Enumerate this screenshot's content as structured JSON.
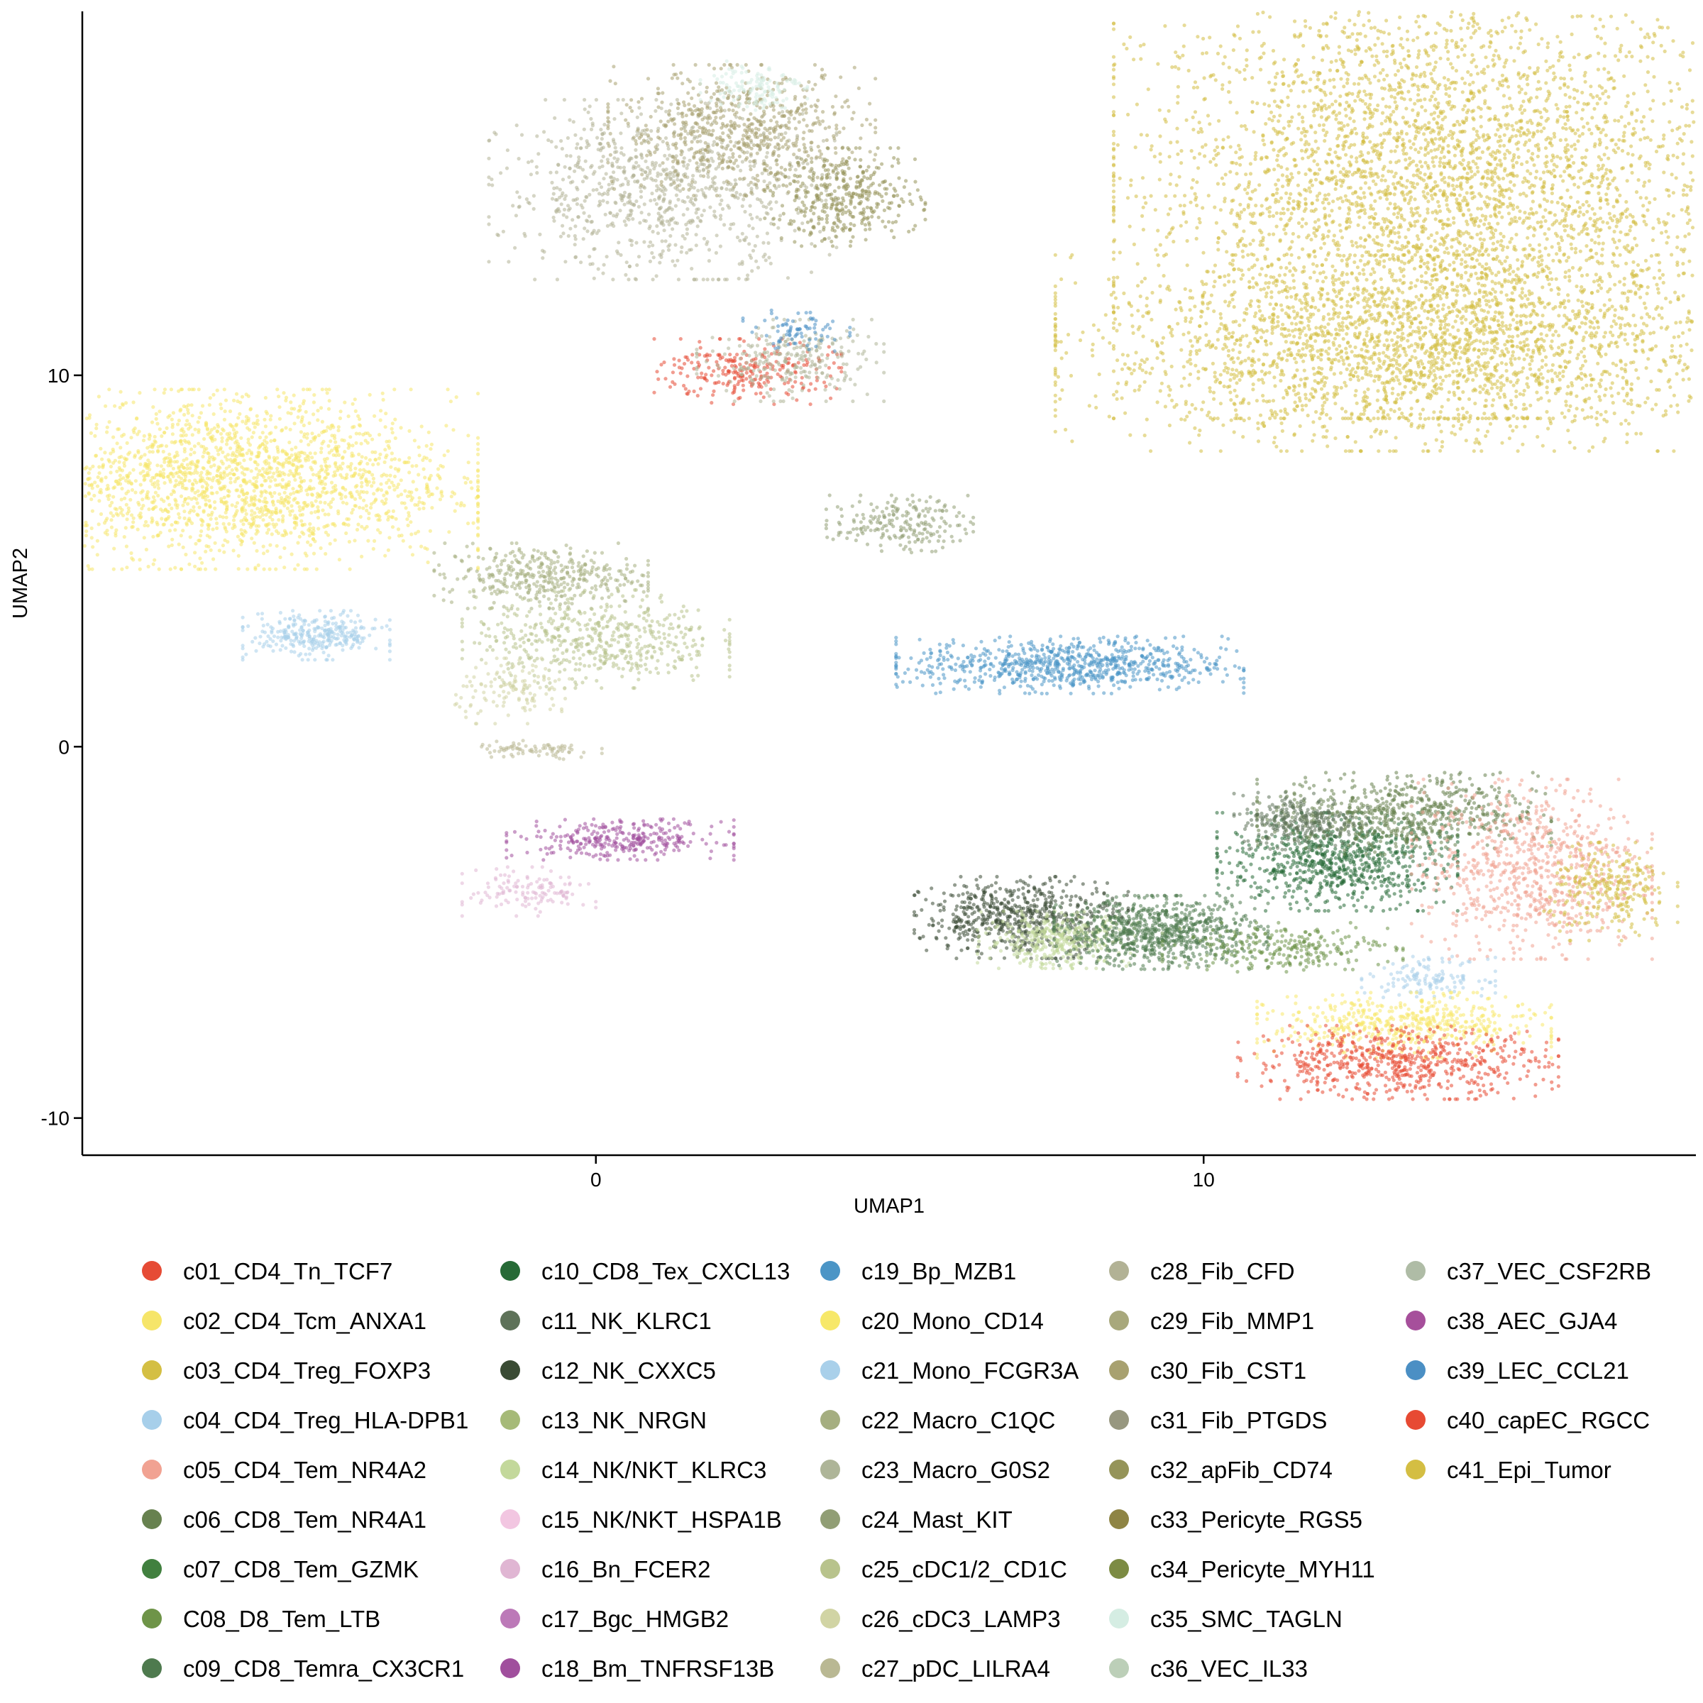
{
  "chart_data": {
    "type": "scatter",
    "title": "",
    "xlabel": "UMAP1",
    "ylabel": "UMAP2",
    "xlim": [
      -8.45,
      18.1
    ],
    "ylim": [
      -11.0,
      19.8
    ],
    "x_ticks": [
      0,
      10
    ],
    "y_ticks": [
      -10,
      0,
      10
    ],
    "x_tick_labels": [
      "0",
      "10"
    ],
    "y_tick_labels": [
      "-10",
      "0",
      "10"
    ],
    "grid": false,
    "legend_position": "bottom",
    "legend_columns": 5,
    "legend_rows": 9,
    "clusters": [
      {
        "name": "c01_CD4_Tn_TCF7",
        "color": "#E64B35"
      },
      {
        "name": "c02_CD4_Tcm_ANXA1",
        "color": "#F6E569"
      },
      {
        "name": "c03_CD4_Treg_FOXP3",
        "color": "#D4BF43"
      },
      {
        "name": "c04_CD4_Treg_HLA-DPB1",
        "color": "#A7CFEA"
      },
      {
        "name": "c05_CD4_Tem_NR4A2",
        "color": "#F1A292"
      },
      {
        "name": "c06_CD8_Tem_NR4A1",
        "color": "#67814F"
      },
      {
        "name": "c07_CD8_Tem_GZMK",
        "color": "#41803F"
      },
      {
        "name": "C08_D8_Tem_LTB",
        "color": "#6E9448"
      },
      {
        "name": "c09_CD8_Temra_CX3CR1",
        "color": "#4E7A4E"
      },
      {
        "name": "c10_CD8_Tex_CXCL13",
        "color": "#266A36"
      },
      {
        "name": "c11_NK_KLRC1",
        "color": "#5E7259"
      },
      {
        "name": "c12_NK_CXXC5",
        "color": "#3A4B34"
      },
      {
        "name": "c13_NK_NRGN",
        "color": "#A6BA78"
      },
      {
        "name": "c14_NK/NKT_KLRC3",
        "color": "#C3D89B"
      },
      {
        "name": "c15_NK/NKT_HSPA1B",
        "color": "#F2C6E1"
      },
      {
        "name": "c16_Bn_FCER2",
        "color": "#E0B6D3"
      },
      {
        "name": "c17_Bgc_HMGB2",
        "color": "#BC79B8"
      },
      {
        "name": "c18_Bm_TNFRSF13B",
        "color": "#A04F9D"
      },
      {
        "name": "c19_Bp_MZB1",
        "color": "#4B95C6"
      },
      {
        "name": "c20_Mono_CD14",
        "color": "#F7E869"
      },
      {
        "name": "c21_Mono_FCGR3A",
        "color": "#A9D0EA"
      },
      {
        "name": "c22_Macro_C1QC",
        "color": "#A5AE80"
      },
      {
        "name": "c23_Macro_G0S2",
        "color": "#AEB598"
      },
      {
        "name": "c24_Mast_KIT",
        "color": "#919E75"
      },
      {
        "name": "c25_cDC1/2_CD1C",
        "color": "#B8C38C"
      },
      {
        "name": "c26_cDC3_LAMP3",
        "color": "#D1D4A4"
      },
      {
        "name": "c27_pDC_LILRA4",
        "color": "#B9B893"
      },
      {
        "name": "c28_Fib_CFD",
        "color": "#B2B295"
      },
      {
        "name": "c29_Fib_MMP1",
        "color": "#A8A87C"
      },
      {
        "name": "c30_Fib_CST1",
        "color": "#A8A170"
      },
      {
        "name": "c31_Fib_PTGDS",
        "color": "#97977F"
      },
      {
        "name": "c32_apFib_CD74",
        "color": "#959459"
      },
      {
        "name": "c33_Pericyte_RGS5",
        "color": "#8E8444"
      },
      {
        "name": "c34_Pericyte_MYH11",
        "color": "#7C8B43"
      },
      {
        "name": "c35_SMC_TAGLN",
        "color": "#D5EDE3"
      },
      {
        "name": "c36_VEC_IL33",
        "color": "#BCCFB8"
      },
      {
        "name": "c37_VEC_CSF2RB",
        "color": "#AFBCA6"
      },
      {
        "name": "c38_AEC_GJA4",
        "color": "#A64F9B"
      },
      {
        "name": "c39_LEC_CCL21",
        "color": "#4B8FC4"
      },
      {
        "name": "c40_capEC_RGCC",
        "color": "#E74A33"
      },
      {
        "name": "c41_Epi_Tumor",
        "color": "#D4BE43"
      }
    ],
    "groups": [
      {
        "name": "c41_Epi_Tumor",
        "center": [
          13.8,
          15.0
        ],
        "spread": [
          2.4,
          2.8
        ],
        "weight": 0.16
      },
      {
        "name": "c03_CD4_Treg_FOXP3",
        "center": [
          13.5,
          10.6
        ],
        "spread": [
          2.7,
          1.2
        ],
        "weight": 0.08
      },
      {
        "name": "c02_CD4_Tcm_ANXA1",
        "center": [
          -5.9,
          7.2
        ],
        "spread": [
          1.8,
          1.1
        ],
        "weight": 0.08
      },
      {
        "name": "c04_CD4_Treg_HLA-DPB1",
        "center": [
          -4.6,
          3.0
        ],
        "spread": [
          0.55,
          0.3
        ],
        "weight": 0.012
      },
      {
        "name": "c28_Fib_CFD",
        "center": [
          1.1,
          15.0
        ],
        "spread": [
          1.3,
          1.1
        ],
        "weight": 0.035
      },
      {
        "name": "c30_Fib_CST1",
        "center": [
          2.4,
          16.6
        ],
        "spread": [
          1.0,
          0.8
        ],
        "weight": 0.025
      },
      {
        "name": "c32_apFib_CD74",
        "center": [
          4.1,
          14.8
        ],
        "spread": [
          0.6,
          0.6
        ],
        "weight": 0.015
      },
      {
        "name": "c35_SMC_TAGLN",
        "center": [
          2.6,
          17.8
        ],
        "spread": [
          0.4,
          0.3
        ],
        "weight": 0.005
      },
      {
        "name": "c01_CD4_Tn_TCF7",
        "center": [
          2.5,
          10.1
        ],
        "spread": [
          0.7,
          0.4
        ],
        "weight": 0.01
      },
      {
        "name": "c23_Macro_G0S2",
        "center": [
          3.2,
          10.4
        ],
        "spread": [
          0.7,
          0.5
        ],
        "weight": 0.01
      },
      {
        "name": "c39_LEC_CCL21",
        "center": [
          3.3,
          11.2
        ],
        "spread": [
          0.4,
          0.25
        ],
        "weight": 0.003
      },
      {
        "name": "c24_Mast_KIT",
        "center": [
          5.0,
          6.0
        ],
        "spread": [
          0.55,
          0.35
        ],
        "weight": 0.008
      },
      {
        "name": "c19_Bp_MZB1",
        "center": [
          7.8,
          2.2
        ],
        "spread": [
          1.3,
          0.35
        ],
        "weight": 0.03
      },
      {
        "name": "c22_Macro_C1QC",
        "center": [
          -0.9,
          4.6
        ],
        "spread": [
          0.8,
          0.4
        ],
        "weight": 0.015
      },
      {
        "name": "c25_cDC1/2_CD1C",
        "center": [
          0.0,
          2.9
        ],
        "spread": [
          1.0,
          0.6
        ],
        "weight": 0.02
      },
      {
        "name": "c26_cDC3_LAMP3",
        "center": [
          -1.3,
          1.5
        ],
        "spread": [
          0.5,
          0.4
        ],
        "weight": 0.005
      },
      {
        "name": "c27_pDC_LILRA4",
        "center": [
          -1.0,
          -0.1
        ],
        "spread": [
          0.5,
          0.12
        ],
        "weight": 0.003
      },
      {
        "name": "c18_Bm_TNFRSF13B",
        "center": [
          0.4,
          -2.5
        ],
        "spread": [
          0.85,
          0.25
        ],
        "weight": 0.012
      },
      {
        "name": "c16_Bn_FCER2",
        "center": [
          -1.1,
          -3.9
        ],
        "spread": [
          0.5,
          0.3
        ],
        "weight": 0.005
      },
      {
        "name": "c12_NK_CXXC5",
        "center": [
          7.0,
          -4.6
        ],
        "spread": [
          0.8,
          0.5
        ],
        "weight": 0.025
      },
      {
        "name": "c14_NK/NKT_KLRC3",
        "center": [
          7.6,
          -5.2
        ],
        "spread": [
          0.6,
          0.35
        ],
        "weight": 0.015
      },
      {
        "name": "c09_CD8_Temra_CX3CR1",
        "center": [
          9.3,
          -5.0
        ],
        "spread": [
          0.8,
          0.45
        ],
        "weight": 0.03
      },
      {
        "name": "C08_D8_Tem_LTB",
        "center": [
          11.3,
          -5.4
        ],
        "spread": [
          0.9,
          0.3
        ],
        "weight": 0.01
      },
      {
        "name": "c10_CD8_Tex_CXCL13",
        "center": [
          12.2,
          -3.1
        ],
        "spread": [
          0.9,
          0.6
        ],
        "weight": 0.03
      },
      {
        "name": "c06_CD8_Tem_NR4A1",
        "center": [
          13.3,
          -1.8
        ],
        "spread": [
          1.1,
          0.5
        ],
        "weight": 0.025
      },
      {
        "name": "c11_NK_KLRC1",
        "center": [
          11.6,
          -2.0
        ],
        "spread": [
          0.5,
          0.35
        ],
        "weight": 0.01
      },
      {
        "name": "c05_CD4_Tem_NR4A2",
        "center": [
          15.4,
          -3.3
        ],
        "spread": [
          0.9,
          1.1
        ],
        "weight": 0.03
      },
      {
        "name": "c03_CD4_Treg_FOXP3",
        "center": [
          16.7,
          -3.9
        ],
        "spread": [
          0.5,
          0.6
        ],
        "weight": 0.01
      },
      {
        "name": "c21_Mono_FCGR3A",
        "center": [
          13.7,
          -6.2
        ],
        "spread": [
          0.5,
          0.25
        ],
        "weight": 0.005
      },
      {
        "name": "c20_Mono_CD14",
        "center": [
          13.3,
          -7.5
        ],
        "spread": [
          1.1,
          0.4
        ],
        "weight": 0.02
      },
      {
        "name": "c40_capEC_RGCC",
        "center": [
          13.2,
          -8.5
        ],
        "spread": [
          1.2,
          0.45
        ],
        "weight": 0.025
      }
    ]
  }
}
